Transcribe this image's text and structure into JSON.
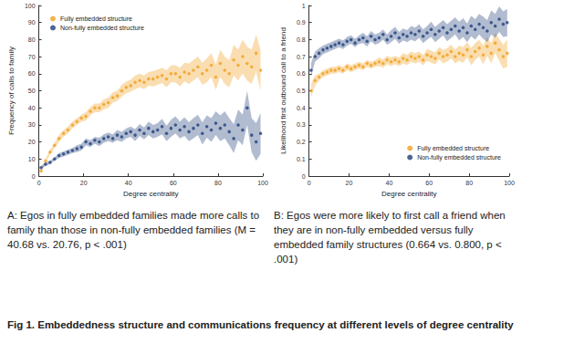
{
  "chart_data": [
    {
      "type": "scatter",
      "title": "A",
      "x_label": "Degree centrality",
      "y_label": "Frequency of calls to family",
      "xlim": [
        0,
        100
      ],
      "xticks": [
        0,
        20,
        40,
        60,
        80,
        100
      ],
      "ylim": [
        0,
        100
      ],
      "yticks": [
        0,
        10,
        20,
        30,
        40,
        50,
        60,
        70,
        80,
        90,
        100
      ],
      "grid": false,
      "legend": "upper left",
      "marker": "circle",
      "x": [
        1,
        3,
        5,
        7,
        9,
        11,
        13,
        15,
        17,
        19,
        21,
        23,
        25,
        27,
        29,
        31,
        33,
        35,
        37,
        39,
        41,
        43,
        45,
        47,
        49,
        51,
        53,
        55,
        57,
        59,
        61,
        63,
        65,
        67,
        69,
        71,
        73,
        75,
        77,
        79,
        81,
        83,
        85,
        87,
        89,
        91,
        93,
        95,
        97,
        99
      ],
      "series": [
        {
          "name": "Fully embedded structure",
          "color": "#f0a020",
          "values": [
            3,
            9,
            14,
            18,
            22,
            25,
            27,
            30,
            32,
            34,
            35,
            38,
            40,
            40,
            42,
            43,
            46,
            47,
            50,
            52,
            53,
            55,
            56,
            55,
            57,
            57,
            58,
            59,
            57,
            60,
            60,
            58,
            61,
            60,
            62,
            64,
            60,
            62,
            65,
            58,
            66,
            62,
            60,
            68,
            65,
            70,
            66,
            64,
            72,
            62
          ],
          "errors": [
            1,
            1,
            1.5,
            1.5,
            2,
            2,
            2,
            2,
            2,
            2,
            2.5,
            2.5,
            2.5,
            2.5,
            3,
            3,
            3,
            3,
            3.5,
            3.5,
            3.5,
            4,
            4,
            4,
            4,
            4.5,
            4.5,
            4.5,
            5,
            5,
            5,
            5.5,
            5.5,
            6,
            6,
            6,
            6.5,
            7,
            7,
            7.5,
            8,
            8,
            8,
            9,
            9,
            10,
            10,
            10,
            11,
            12
          ]
        },
        {
          "name": "Non-fully embedded structure",
          "color": "#1f3f7a",
          "values": [
            5,
            7,
            8,
            10,
            12,
            13,
            14,
            15,
            16,
            17,
            20,
            19,
            21,
            20,
            22,
            23,
            22,
            24,
            23,
            25,
            26,
            24,
            27,
            25,
            28,
            26,
            27,
            29,
            25,
            28,
            30,
            27,
            29,
            26,
            28,
            30,
            25,
            29,
            27,
            31,
            28,
            30,
            26,
            22,
            30,
            27,
            40,
            24,
            20,
            25
          ],
          "errors": [
            1,
            1,
            1,
            1,
            1.5,
            1.5,
            1.5,
            1.5,
            2,
            2,
            2,
            2,
            2,
            2.5,
            2.5,
            2.5,
            2.5,
            3,
            3,
            3,
            3,
            3.5,
            3.5,
            3.5,
            4,
            4,
            4,
            4.5,
            4.5,
            5,
            5,
            5,
            5.5,
            5.5,
            6,
            6,
            6.5,
            6.5,
            7,
            7,
            7.5,
            8,
            8,
            8.5,
            9,
            9,
            10,
            10,
            11,
            12
          ]
        }
      ]
    },
    {
      "type": "scatter",
      "title": "B",
      "x_label": "Degree centrality",
      "y_label": "Likelihood first outbound call to a friend",
      "xlim": [
        0,
        100
      ],
      "xticks": [
        0,
        20,
        40,
        60,
        80,
        100
      ],
      "ylim": [
        0,
        1
      ],
      "yticks": [
        0,
        0.1,
        0.2,
        0.3,
        0.4,
        0.5,
        0.6,
        0.7,
        0.8,
        0.9,
        1
      ],
      "grid": false,
      "legend": "lower right",
      "marker": "circle",
      "x": [
        1,
        3,
        5,
        7,
        9,
        11,
        13,
        15,
        17,
        19,
        21,
        23,
        25,
        27,
        29,
        31,
        33,
        35,
        37,
        39,
        41,
        43,
        45,
        47,
        49,
        51,
        53,
        55,
        57,
        59,
        61,
        63,
        65,
        67,
        69,
        71,
        73,
        75,
        77,
        79,
        81,
        83,
        85,
        87,
        89,
        91,
        93,
        95,
        97,
        99
      ],
      "series": [
        {
          "name": "Fully embedded structure",
          "color": "#f0a020",
          "values": [
            0.5,
            0.56,
            0.58,
            0.6,
            0.61,
            0.62,
            0.62,
            0.63,
            0.62,
            0.64,
            0.63,
            0.64,
            0.65,
            0.64,
            0.66,
            0.65,
            0.66,
            0.67,
            0.66,
            0.68,
            0.67,
            0.68,
            0.67,
            0.69,
            0.68,
            0.7,
            0.69,
            0.7,
            0.68,
            0.71,
            0.7,
            0.69,
            0.72,
            0.7,
            0.71,
            0.73,
            0.7,
            0.72,
            0.71,
            0.74,
            0.7,
            0.73,
            0.75,
            0.71,
            0.76,
            0.72,
            0.78,
            0.74,
            0.7,
            0.72
          ],
          "errors": [
            0.04,
            0.03,
            0.02,
            0.02,
            0.02,
            0.02,
            0.02,
            0.02,
            0.02,
            0.02,
            0.02,
            0.02,
            0.02,
            0.02,
            0.02,
            0.02,
            0.02,
            0.025,
            0.025,
            0.025,
            0.025,
            0.025,
            0.025,
            0.03,
            0.03,
            0.03,
            0.03,
            0.03,
            0.03,
            0.035,
            0.035,
            0.035,
            0.035,
            0.04,
            0.04,
            0.04,
            0.04,
            0.045,
            0.045,
            0.045,
            0.05,
            0.05,
            0.05,
            0.055,
            0.055,
            0.06,
            0.06,
            0.065,
            0.07,
            0.08
          ]
        },
        {
          "name": "Non-fully embedded structure",
          "color": "#1f3f7a",
          "values": [
            0.62,
            0.7,
            0.72,
            0.74,
            0.75,
            0.76,
            0.77,
            0.78,
            0.77,
            0.79,
            0.8,
            0.78,
            0.8,
            0.81,
            0.79,
            0.82,
            0.8,
            0.81,
            0.83,
            0.8,
            0.82,
            0.84,
            0.81,
            0.83,
            0.82,
            0.84,
            0.83,
            0.85,
            0.82,
            0.84,
            0.86,
            0.83,
            0.85,
            0.87,
            0.84,
            0.86,
            0.88,
            0.85,
            0.87,
            0.84,
            0.88,
            0.86,
            0.89,
            0.87,
            0.85,
            0.9,
            0.88,
            0.92,
            0.89,
            0.9
          ],
          "errors": [
            0.04,
            0.03,
            0.03,
            0.025,
            0.025,
            0.025,
            0.025,
            0.025,
            0.025,
            0.025,
            0.025,
            0.025,
            0.025,
            0.03,
            0.03,
            0.03,
            0.03,
            0.03,
            0.03,
            0.03,
            0.035,
            0.035,
            0.035,
            0.035,
            0.035,
            0.04,
            0.04,
            0.04,
            0.04,
            0.04,
            0.045,
            0.045,
            0.045,
            0.045,
            0.05,
            0.05,
            0.05,
            0.055,
            0.055,
            0.055,
            0.06,
            0.06,
            0.06,
            0.065,
            0.065,
            0.07,
            0.07,
            0.075,
            0.075,
            0.08
          ]
        }
      ]
    }
  ],
  "captions": [
    "A: Egos in fully embedded families made more calls to family than those in non-fully embedded families (M = 40.68 vs. 20.76, p < .001)",
    "B: Egos were more likely to first call a friend when they are in non-fully embedded versus fully embedded family structures (0.664 vs. 0.800, p < .001)"
  ],
  "figure_title": "Fig 1. Embeddedness structure and communications frequency at different levels of degree centrality"
}
